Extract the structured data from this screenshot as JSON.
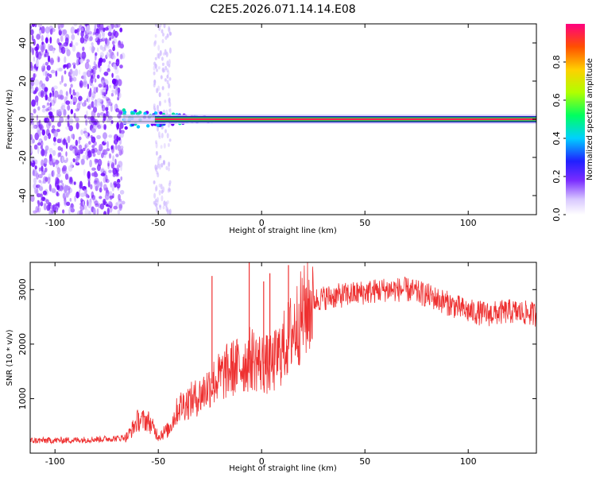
{
  "title": "C2E5.2026.071.14.14.E08",
  "chart_data": [
    {
      "type": "heatmap",
      "xlabel": "Height of straight line (km)",
      "ylabel": "Frequency (Hz)",
      "xlim": [
        -112,
        133
      ],
      "ylim": [
        -50,
        50
      ],
      "xticks": [
        -100,
        -50,
        0,
        50,
        100
      ],
      "xtick_labels": [
        "-100",
        "-50",
        "0",
        "50",
        "100"
      ],
      "yticks": [
        -40,
        -20,
        0,
        20,
        40
      ],
      "ytick_labels": [
        "-40",
        "-20",
        "0",
        "20",
        "40"
      ],
      "colorbar": {
        "label": "Normalized spectral amplitude",
        "range": [
          0,
          1
        ],
        "ticks": [
          0.0,
          0.2,
          0.4,
          0.6,
          0.8
        ],
        "tick_labels": [
          "0.0",
          "0.2",
          "0.4",
          "0.6",
          "0.8"
        ]
      },
      "features": [
        {
          "name": "broadband-noise",
          "x_range": [
            -112,
            -67
          ],
          "amplitude": 0.15
        },
        {
          "name": "sparse-noise-band",
          "x_range": [
            -52,
            -44
          ],
          "amplitude": 0.05
        },
        {
          "name": "carrier-line",
          "frequency": 0,
          "x_range": [
            -67,
            133
          ],
          "amplitude": 0.95
        }
      ]
    },
    {
      "type": "line",
      "xlabel": "Height of straight line (km)",
      "ylabel": "SNR (10 * v/v)",
      "xlim": [
        -112,
        133
      ],
      "ylim": [
        0,
        3500
      ],
      "xticks": [
        -100,
        -50,
        0,
        50,
        100
      ],
      "xtick_labels": [
        "-100",
        "-50",
        "0",
        "50",
        "100"
      ],
      "yticks": [
        1000,
        2000,
        3000
      ],
      "ytick_labels": [
        "1000",
        "2000",
        "3000"
      ],
      "series": [
        {
          "name": "SNR",
          "color": "#ee3030",
          "x": [
            -112,
            -90,
            -70,
            -65,
            -60,
            -55,
            -50,
            -45,
            -40,
            -35,
            -30,
            -25,
            -20,
            -15,
            -10,
            -5,
            0,
            5,
            10,
            15,
            20,
            25,
            30,
            40,
            50,
            60,
            70,
            80,
            90,
            100,
            110,
            120,
            133
          ],
          "y": [
            230,
            240,
            270,
            300,
            600,
            600,
            320,
            430,
            850,
            950,
            1050,
            1250,
            1400,
            1550,
            1600,
            1750,
            1650,
            1600,
            1900,
            2250,
            2550,
            2800,
            2850,
            2900,
            2950,
            3000,
            3000,
            2900,
            2750,
            2600,
            2550,
            2600,
            2550
          ]
        }
      ],
      "spikes": [
        {
          "x": -24,
          "y": 3250
        },
        {
          "x": -6,
          "y": 3500
        },
        {
          "x": 1,
          "y": 3150
        },
        {
          "x": 4,
          "y": 3300
        },
        {
          "x": 13,
          "y": 3450
        }
      ]
    }
  ]
}
